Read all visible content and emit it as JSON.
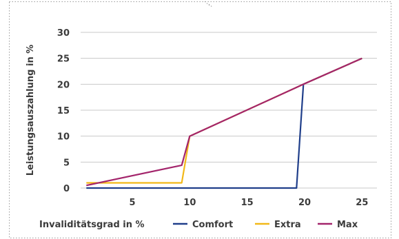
{
  "chart_data": {
    "type": "line",
    "title": "",
    "xlabel": "Invaliditätsgrad in %",
    "ylabel": "Leistungsauszahlung in %",
    "xlim": [
      0.5,
      26.3
    ],
    "ylim": [
      0,
      30
    ],
    "xticks": [
      5,
      10,
      15,
      20,
      25
    ],
    "yticks": [
      0,
      5,
      10,
      15,
      20,
      25,
      30
    ],
    "grid": "horizontal",
    "legend_position": "bottom",
    "series": [
      {
        "name": "Comfort",
        "color": "#1f3e8a",
        "points": [
          [
            1,
            0
          ],
          [
            19.3,
            0
          ],
          [
            19.9,
            20
          ],
          [
            25,
            25
          ]
        ]
      },
      {
        "name": "Extra",
        "color": "#f2b818",
        "points": [
          [
            1,
            1
          ],
          [
            9.3,
            1
          ],
          [
            10,
            10
          ],
          [
            19.9,
            20
          ],
          [
            25,
            25
          ]
        ]
      },
      {
        "name": "Max",
        "color": "#a3246b",
        "points": [
          [
            1,
            0.5
          ],
          [
            9.3,
            4.4
          ],
          [
            10,
            10
          ],
          [
            19.9,
            20
          ],
          [
            25,
            25
          ]
        ]
      }
    ]
  }
}
